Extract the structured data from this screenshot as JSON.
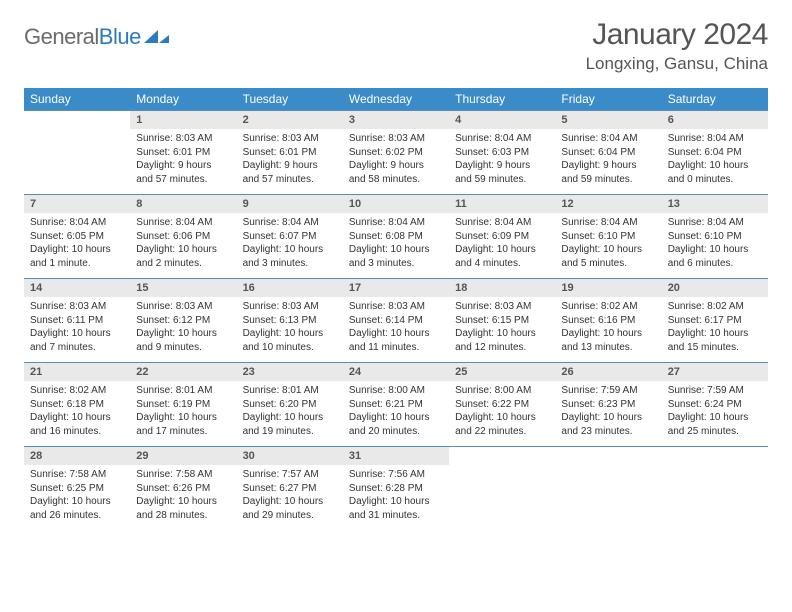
{
  "logo": {
    "word1": "General",
    "word2": "Blue"
  },
  "title": "January 2024",
  "location": "Longxing, Gansu, China",
  "colors": {
    "header_bg": "#3b8bc9",
    "daynum_bg": "#e9e9e9",
    "rule": "#5a8cb8",
    "text": "#333333",
    "logo_gray": "#6b6b6b",
    "logo_blue": "#2b7bbf"
  },
  "weekdays": [
    "Sunday",
    "Monday",
    "Tuesday",
    "Wednesday",
    "Thursday",
    "Friday",
    "Saturday"
  ],
  "weeks": [
    {
      "nums": [
        "",
        "1",
        "2",
        "3",
        "4",
        "5",
        "6"
      ],
      "info": [
        {
          "sunrise": "",
          "sunset": "",
          "daylight": ""
        },
        {
          "sunrise": "Sunrise: 8:03 AM",
          "sunset": "Sunset: 6:01 PM",
          "daylight": "Daylight: 9 hours and 57 minutes."
        },
        {
          "sunrise": "Sunrise: 8:03 AM",
          "sunset": "Sunset: 6:01 PM",
          "daylight": "Daylight: 9 hours and 57 minutes."
        },
        {
          "sunrise": "Sunrise: 8:03 AM",
          "sunset": "Sunset: 6:02 PM",
          "daylight": "Daylight: 9 hours and 58 minutes."
        },
        {
          "sunrise": "Sunrise: 8:04 AM",
          "sunset": "Sunset: 6:03 PM",
          "daylight": "Daylight: 9 hours and 59 minutes."
        },
        {
          "sunrise": "Sunrise: 8:04 AM",
          "sunset": "Sunset: 6:04 PM",
          "daylight": "Daylight: 9 hours and 59 minutes."
        },
        {
          "sunrise": "Sunrise: 8:04 AM",
          "sunset": "Sunset: 6:04 PM",
          "daylight": "Daylight: 10 hours and 0 minutes."
        }
      ]
    },
    {
      "nums": [
        "7",
        "8",
        "9",
        "10",
        "11",
        "12",
        "13"
      ],
      "info": [
        {
          "sunrise": "Sunrise: 8:04 AM",
          "sunset": "Sunset: 6:05 PM",
          "daylight": "Daylight: 10 hours and 1 minute."
        },
        {
          "sunrise": "Sunrise: 8:04 AM",
          "sunset": "Sunset: 6:06 PM",
          "daylight": "Daylight: 10 hours and 2 minutes."
        },
        {
          "sunrise": "Sunrise: 8:04 AM",
          "sunset": "Sunset: 6:07 PM",
          "daylight": "Daylight: 10 hours and 3 minutes."
        },
        {
          "sunrise": "Sunrise: 8:04 AM",
          "sunset": "Sunset: 6:08 PM",
          "daylight": "Daylight: 10 hours and 3 minutes."
        },
        {
          "sunrise": "Sunrise: 8:04 AM",
          "sunset": "Sunset: 6:09 PM",
          "daylight": "Daylight: 10 hours and 4 minutes."
        },
        {
          "sunrise": "Sunrise: 8:04 AM",
          "sunset": "Sunset: 6:10 PM",
          "daylight": "Daylight: 10 hours and 5 minutes."
        },
        {
          "sunrise": "Sunrise: 8:04 AM",
          "sunset": "Sunset: 6:10 PM",
          "daylight": "Daylight: 10 hours and 6 minutes."
        }
      ]
    },
    {
      "nums": [
        "14",
        "15",
        "16",
        "17",
        "18",
        "19",
        "20"
      ],
      "info": [
        {
          "sunrise": "Sunrise: 8:03 AM",
          "sunset": "Sunset: 6:11 PM",
          "daylight": "Daylight: 10 hours and 7 minutes."
        },
        {
          "sunrise": "Sunrise: 8:03 AM",
          "sunset": "Sunset: 6:12 PM",
          "daylight": "Daylight: 10 hours and 9 minutes."
        },
        {
          "sunrise": "Sunrise: 8:03 AM",
          "sunset": "Sunset: 6:13 PM",
          "daylight": "Daylight: 10 hours and 10 minutes."
        },
        {
          "sunrise": "Sunrise: 8:03 AM",
          "sunset": "Sunset: 6:14 PM",
          "daylight": "Daylight: 10 hours and 11 minutes."
        },
        {
          "sunrise": "Sunrise: 8:03 AM",
          "sunset": "Sunset: 6:15 PM",
          "daylight": "Daylight: 10 hours and 12 minutes."
        },
        {
          "sunrise": "Sunrise: 8:02 AM",
          "sunset": "Sunset: 6:16 PM",
          "daylight": "Daylight: 10 hours and 13 minutes."
        },
        {
          "sunrise": "Sunrise: 8:02 AM",
          "sunset": "Sunset: 6:17 PM",
          "daylight": "Daylight: 10 hours and 15 minutes."
        }
      ]
    },
    {
      "nums": [
        "21",
        "22",
        "23",
        "24",
        "25",
        "26",
        "27"
      ],
      "info": [
        {
          "sunrise": "Sunrise: 8:02 AM",
          "sunset": "Sunset: 6:18 PM",
          "daylight": "Daylight: 10 hours and 16 minutes."
        },
        {
          "sunrise": "Sunrise: 8:01 AM",
          "sunset": "Sunset: 6:19 PM",
          "daylight": "Daylight: 10 hours and 17 minutes."
        },
        {
          "sunrise": "Sunrise: 8:01 AM",
          "sunset": "Sunset: 6:20 PM",
          "daylight": "Daylight: 10 hours and 19 minutes."
        },
        {
          "sunrise": "Sunrise: 8:00 AM",
          "sunset": "Sunset: 6:21 PM",
          "daylight": "Daylight: 10 hours and 20 minutes."
        },
        {
          "sunrise": "Sunrise: 8:00 AM",
          "sunset": "Sunset: 6:22 PM",
          "daylight": "Daylight: 10 hours and 22 minutes."
        },
        {
          "sunrise": "Sunrise: 7:59 AM",
          "sunset": "Sunset: 6:23 PM",
          "daylight": "Daylight: 10 hours and 23 minutes."
        },
        {
          "sunrise": "Sunrise: 7:59 AM",
          "sunset": "Sunset: 6:24 PM",
          "daylight": "Daylight: 10 hours and 25 minutes."
        }
      ]
    },
    {
      "nums": [
        "28",
        "29",
        "30",
        "31",
        "",
        "",
        ""
      ],
      "info": [
        {
          "sunrise": "Sunrise: 7:58 AM",
          "sunset": "Sunset: 6:25 PM",
          "daylight": "Daylight: 10 hours and 26 minutes."
        },
        {
          "sunrise": "Sunrise: 7:58 AM",
          "sunset": "Sunset: 6:26 PM",
          "daylight": "Daylight: 10 hours and 28 minutes."
        },
        {
          "sunrise": "Sunrise: 7:57 AM",
          "sunset": "Sunset: 6:27 PM",
          "daylight": "Daylight: 10 hours and 29 minutes."
        },
        {
          "sunrise": "Sunrise: 7:56 AM",
          "sunset": "Sunset: 6:28 PM",
          "daylight": "Daylight: 10 hours and 31 minutes."
        },
        {
          "sunrise": "",
          "sunset": "",
          "daylight": ""
        },
        {
          "sunrise": "",
          "sunset": "",
          "daylight": ""
        },
        {
          "sunrise": "",
          "sunset": "",
          "daylight": ""
        }
      ]
    }
  ]
}
